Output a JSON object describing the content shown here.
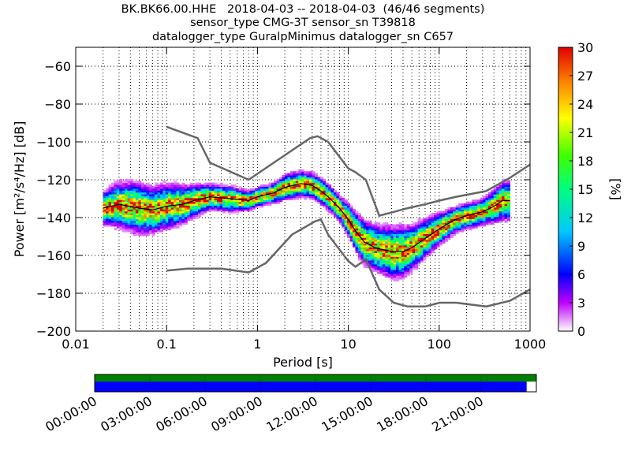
{
  "header": {
    "title_lines": [
      "BK.BK66.00.HHE   2018-04-03 -- 2018-04-03  (46/46 segments)",
      "sensor_type CMG-3T sensor_sn T39818",
      "datalogger_type GuralpMinimus datalogger_sn C657"
    ]
  },
  "chart_data": {
    "type": "heatmap",
    "xlabel": "Period [s]",
    "ylabel": "Power [m²/s⁴/Hz] [dB]",
    "xscale": "log",
    "xlim": [
      0.01,
      1000
    ],
    "ylim": [
      -200,
      -50
    ],
    "x_ticks": [
      0.01,
      0.1,
      1,
      10,
      100,
      1000
    ],
    "x_tick_labels": [
      "0.01",
      "0.1",
      "1",
      "10",
      "100",
      "1000"
    ],
    "y_ticks": [
      -200,
      -180,
      -160,
      -140,
      -120,
      -100,
      -80,
      -60
    ],
    "y_tick_labels": [
      "−200",
      "−180",
      "−160",
      "−140",
      "−120",
      "−100",
      "−80",
      "−60"
    ],
    "grid": true,
    "colorbar": {
      "label": "[%]",
      "range": [
        0,
        30
      ],
      "ticks": [
        0,
        3,
        6,
        9,
        12,
        15,
        18,
        21,
        24,
        27,
        30
      ],
      "tick_labels": [
        "0",
        "3",
        "6",
        "9",
        "12",
        "15",
        "18",
        "21",
        "24",
        "27",
        "30"
      ]
    },
    "density_median": {
      "period": [
        0.02,
        0.03,
        0.05,
        0.07,
        0.1,
        0.15,
        0.2,
        0.3,
        0.5,
        0.8,
        1.0,
        1.5,
        2.0,
        3.0,
        4.0,
        5.0,
        6.0,
        8.0,
        10,
        12,
        15,
        20,
        30,
        40,
        50,
        70,
        100,
        150,
        200,
        300,
        400,
        500,
        600
      ],
      "power": [
        -135,
        -133,
        -135,
        -136,
        -134,
        -133,
        -131,
        -129,
        -130,
        -131,
        -129,
        -127,
        -124,
        -122,
        -123,
        -126,
        -129,
        -135,
        -141,
        -147,
        -153,
        -156,
        -158,
        -158,
        -156,
        -151,
        -146,
        -141,
        -139,
        -137,
        -134,
        -131,
        -131
      ]
    },
    "density_spread": [
      5,
      7,
      8,
      7,
      7,
      6,
      5,
      4,
      4,
      3,
      3,
      3,
      4,
      4,
      4,
      4,
      4,
      4,
      5,
      6,
      7,
      7,
      8,
      8,
      7,
      6,
      5,
      4,
      4,
      4,
      5,
      6,
      6
    ],
    "noise_models": [
      {
        "period": [
          0.1,
          0.22,
          0.3,
          0.8,
          3.8,
          4.6,
          6.0,
          10.0,
          12.0,
          15.6,
          21.9,
          31.6,
          45.0,
          70.0,
          101.0,
          154.0,
          328.0,
          600.0,
          1000.0
        ],
        "power": [
          -92,
          -98,
          -111,
          -120,
          -98,
          -97,
          -100,
          -114,
          -116,
          -120,
          -139,
          -137,
          -135,
          -133,
          -131,
          -129,
          -126,
          -119,
          -112
        ]
      },
      {
        "period": [
          0.1,
          0.17,
          0.4,
          0.8,
          1.24,
          2.4,
          4.3,
          5.0,
          6.0,
          10.0,
          12.0,
          15.6,
          21.9,
          31.6,
          45.0,
          70.0,
          101.0,
          154.0,
          328.0,
          600.0,
          1000.0
        ],
        "power": [
          -168,
          -167,
          -167,
          -169,
          -164,
          -149,
          -142,
          -141,
          -149,
          -163,
          -166,
          -162,
          -178,
          -185,
          -187,
          -187,
          -185,
          -185,
          -187,
          -184,
          -178
        ]
      }
    ]
  },
  "timeline": {
    "ticks": [
      "00:00:00",
      "03:00:00",
      "06:00:00",
      "09:00:00",
      "12:00:00",
      "15:00:00",
      "18:00:00",
      "21:00:00"
    ],
    "data_coverage": 0.978,
    "gap_coverage": 1.0,
    "colors": {
      "data": "#0000ff",
      "gaps": "#008000"
    }
  }
}
